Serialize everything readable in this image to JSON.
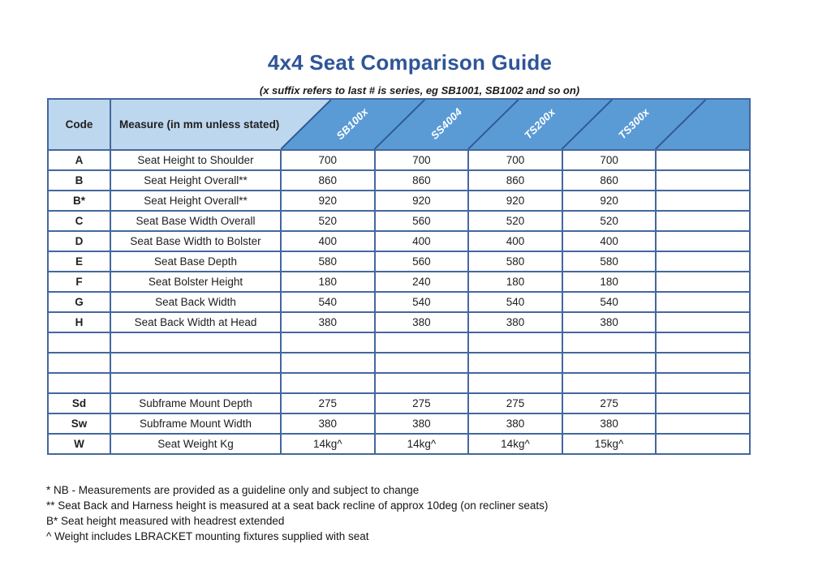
{
  "page": {
    "title": "4x4 Seat Comparison Guide",
    "subtitle": "(x suffix refers to last # is series, eg SB1001, SB1002 and so on)"
  },
  "colors": {
    "title_blue": "#2f5597",
    "header_light_blue": "#bdd7ee",
    "header_dark_blue": "#5b9bd5",
    "grid_border": "#44679e",
    "diagonal_line": "#2d5a96",
    "header_label_text": "#ffffff"
  },
  "table": {
    "code_header": "Code",
    "measure_header": "Measure (in mm unless stated)",
    "product_columns": [
      "SB100x",
      "SS4004",
      "TS200x",
      "TS300x",
      ""
    ],
    "rows": [
      {
        "code": "A",
        "measure": "Seat Height to Shoulder",
        "values": [
          "700",
          "700",
          "700",
          "700",
          ""
        ]
      },
      {
        "code": "B",
        "measure": "Seat Height Overall**",
        "values": [
          "860",
          "860",
          "860",
          "860",
          ""
        ]
      },
      {
        "code": "B*",
        "measure": "Seat Height Overall**",
        "values": [
          "920",
          "920",
          "920",
          "920",
          ""
        ]
      },
      {
        "code": "C",
        "measure": "Seat Base Width Overall",
        "values": [
          "520",
          "560",
          "520",
          "520",
          ""
        ]
      },
      {
        "code": "D",
        "measure": "Seat Base Width to Bolster",
        "values": [
          "400",
          "400",
          "400",
          "400",
          ""
        ]
      },
      {
        "code": "E",
        "measure": "Seat Base Depth",
        "values": [
          "580",
          "560",
          "580",
          "580",
          ""
        ]
      },
      {
        "code": "F",
        "measure": "Seat Bolster Height",
        "values": [
          "180",
          "240",
          "180",
          "180",
          ""
        ]
      },
      {
        "code": "G",
        "measure": "Seat Back Width",
        "values": [
          "540",
          "540",
          "540",
          "540",
          ""
        ]
      },
      {
        "code": "H",
        "measure": "Seat Back Width at Head",
        "values": [
          "380",
          "380",
          "380",
          "380",
          ""
        ]
      },
      {
        "code": "",
        "measure": "",
        "values": [
          "",
          "",
          "",
          "",
          ""
        ]
      },
      {
        "code": "",
        "measure": "",
        "values": [
          "",
          "",
          "",
          "",
          ""
        ]
      },
      {
        "code": "",
        "measure": "",
        "values": [
          "",
          "",
          "",
          "",
          ""
        ]
      },
      {
        "code": "Sd",
        "measure": "Subframe Mount Depth",
        "values": [
          "275",
          "275",
          "275",
          "275",
          ""
        ]
      },
      {
        "code": "Sw",
        "measure": "Subframe Mount Width",
        "values": [
          "380",
          "380",
          "380",
          "380",
          ""
        ]
      },
      {
        "code": "W",
        "measure": "Seat Weight Kg",
        "values": [
          "14kg^",
          "14kg^",
          "14kg^",
          "15kg^",
          ""
        ]
      }
    ]
  },
  "notes": [
    "* NB - Measurements are provided as a guideline only and subject to change",
    "** Seat Back and Harness height is measured at a seat back recline of approx 10deg (on recliner seats)",
    "B* Seat height measured with headrest extended",
    "^ Weight includes LBRACKET mounting fixtures supplied with seat"
  ]
}
